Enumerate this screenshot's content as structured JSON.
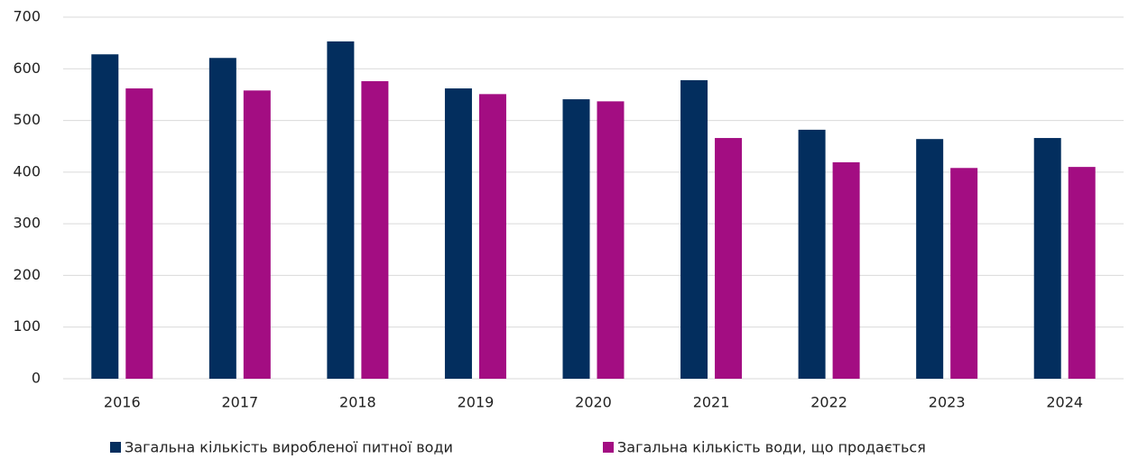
{
  "chart_data": {
    "type": "bar",
    "categories": [
      "2016",
      "2017",
      "2018",
      "2019",
      "2020",
      "2021",
      "2022",
      "2023",
      "2024"
    ],
    "series": [
      {
        "name": "Загальна кількість виробленої питної води",
        "color": "#032e5e",
        "values": [
          628,
          621,
          653,
          562,
          541,
          578,
          482,
          464,
          466
        ]
      },
      {
        "name": "Загальна кількість води, що продається",
        "color": "#a30d82",
        "values": [
          562,
          558,
          576,
          551,
          537,
          466,
          419,
          408,
          410
        ]
      }
    ],
    "ylim": [
      0,
      700
    ],
    "yticks": [
      0,
      100,
      200,
      300,
      400,
      500,
      600,
      700
    ],
    "grid": true,
    "legend": "bottom"
  }
}
